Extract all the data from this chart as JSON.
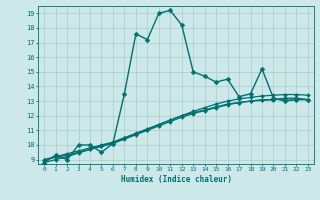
{
  "xlabel": "Humidex (Indice chaleur)",
  "xlim": [
    -0.5,
    23.5
  ],
  "ylim": [
    8.7,
    19.5
  ],
  "xticks": [
    0,
    1,
    2,
    3,
    4,
    5,
    6,
    7,
    8,
    9,
    10,
    11,
    12,
    13,
    14,
    15,
    16,
    17,
    18,
    19,
    20,
    21,
    22,
    23
  ],
  "yticks": [
    9,
    10,
    11,
    12,
    13,
    14,
    15,
    16,
    17,
    18,
    19
  ],
  "background_color": "#cce8e8",
  "grid_color": "#aacccc",
  "line_color": "#007070",
  "series": [
    {
      "x": [
        0,
        1,
        2,
        3,
        4,
        5,
        6,
        7,
        8,
        9,
        10,
        11,
        12,
        13,
        14,
        15,
        16,
        17,
        18,
        19,
        20,
        21,
        22,
        23
      ],
      "y": [
        9.0,
        9.2,
        9.4,
        9.6,
        9.8,
        10.0,
        10.2,
        10.5,
        10.8,
        11.1,
        11.4,
        11.7,
        12.0,
        12.2,
        12.4,
        12.6,
        12.8,
        12.9,
        13.0,
        13.1,
        13.1,
        13.2,
        13.2,
        13.1
      ],
      "marker": "D",
      "markersize": 2.0,
      "linewidth": 0.9
    },
    {
      "x": [
        0,
        1,
        2,
        3,
        4,
        5,
        6,
        7,
        8,
        9,
        10,
        11,
        12,
        13,
        14,
        15,
        16,
        17,
        18,
        19,
        20,
        21,
        22,
        23
      ],
      "y": [
        9.0,
        9.15,
        9.3,
        9.5,
        9.7,
        9.9,
        10.1,
        10.4,
        10.7,
        11.0,
        11.3,
        11.6,
        11.9,
        12.15,
        12.35,
        12.55,
        12.75,
        12.9,
        13.0,
        13.05,
        13.1,
        13.15,
        13.15,
        13.1
      ],
      "marker": "D",
      "markersize": 2.0,
      "linewidth": 0.9
    },
    {
      "x": [
        0,
        1,
        2,
        3,
        4,
        5,
        6,
        7,
        8,
        9,
        10,
        11,
        12,
        13,
        14,
        15,
        16,
        17,
        18,
        19,
        20,
        21,
        22,
        23
      ],
      "y": [
        8.8,
        9.0,
        9.2,
        9.45,
        9.7,
        9.95,
        10.15,
        10.45,
        10.75,
        11.05,
        11.4,
        11.7,
        12.0,
        12.3,
        12.55,
        12.8,
        13.0,
        13.15,
        13.25,
        13.35,
        13.4,
        13.45,
        13.45,
        13.4
      ],
      "marker": "D",
      "markersize": 2.0,
      "linewidth": 0.9
    },
    {
      "x": [
        0,
        1,
        2,
        3,
        4,
        5,
        6,
        7,
        8,
        9,
        10,
        11,
        12,
        13,
        14,
        15,
        16,
        17,
        18,
        19,
        20,
        21,
        22,
        23
      ],
      "y": [
        8.8,
        9.3,
        9.0,
        10.0,
        10.0,
        9.5,
        10.1,
        13.5,
        17.6,
        17.2,
        19.0,
        19.2,
        18.2,
        15.0,
        14.7,
        14.3,
        14.5,
        13.3,
        13.5,
        15.2,
        13.2,
        13.0,
        13.1,
        13.1
      ],
      "marker": "D",
      "markersize": 2.5,
      "linewidth": 1.0
    }
  ]
}
